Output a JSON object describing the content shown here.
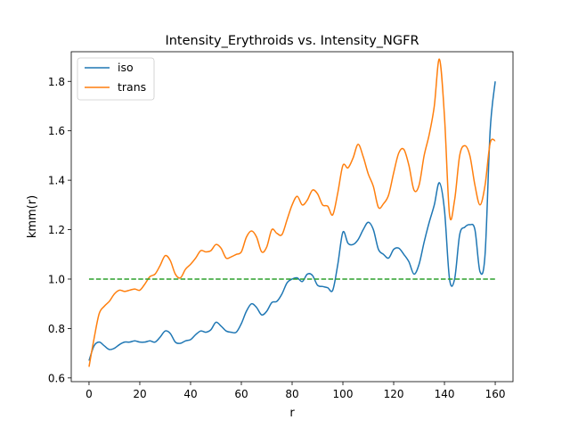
{
  "chart_data": {
    "type": "line",
    "title": "Intensity_Erythroids vs. Intensity_NGFR",
    "xlabel": "r",
    "ylabel": "kmm(r)",
    "xlim": [
      -7,
      167
    ],
    "ylim": [
      0.585,
      1.92
    ],
    "xticks": [
      0,
      20,
      40,
      60,
      80,
      100,
      120,
      140,
      160
    ],
    "yticks": [
      0.6,
      0.8,
      1.0,
      1.2,
      1.4,
      1.6,
      1.8
    ],
    "ytick_labels": [
      "0.6",
      "0.8",
      "1.0",
      "1.2",
      "1.4",
      "1.6",
      "1.8"
    ],
    "grid": false,
    "legend": {
      "placement": "top-left"
    },
    "x": [
      0,
      2,
      4,
      6,
      8,
      10,
      12,
      14,
      16,
      18,
      20,
      22,
      24,
      26,
      28,
      30,
      32,
      34,
      36,
      38,
      40,
      42,
      44,
      46,
      48,
      50,
      52,
      54,
      56,
      58,
      60,
      62,
      64,
      66,
      68,
      70,
      72,
      74,
      76,
      78,
      80,
      82,
      84,
      86,
      88,
      90,
      92,
      94,
      96,
      98,
      100,
      102,
      104,
      106,
      108,
      110,
      112,
      114,
      116,
      118,
      120,
      122,
      124,
      126,
      128,
      130,
      132,
      134,
      136,
      138,
      140,
      142,
      144,
      146,
      148,
      150,
      152,
      154,
      156,
      158,
      160
    ],
    "series": [
      {
        "name": "iso",
        "color": "#1f77b4",
        "values": [
          0.67,
          0.73,
          0.745,
          0.73,
          0.715,
          0.72,
          0.735,
          0.745,
          0.745,
          0.75,
          0.745,
          0.745,
          0.75,
          0.745,
          0.765,
          0.79,
          0.78,
          0.745,
          0.74,
          0.75,
          0.755,
          0.775,
          0.79,
          0.785,
          0.795,
          0.825,
          0.81,
          0.79,
          0.785,
          0.785,
          0.82,
          0.87,
          0.9,
          0.885,
          0.855,
          0.87,
          0.905,
          0.91,
          0.94,
          0.985,
          1.0,
          1.005,
          0.99,
          1.02,
          1.015,
          0.975,
          0.97,
          0.965,
          0.955,
          1.06,
          1.19,
          1.145,
          1.14,
          1.16,
          1.2,
          1.23,
          1.2,
          1.12,
          1.1,
          1.085,
          1.12,
          1.125,
          1.1,
          1.07,
          1.02,
          1.06,
          1.15,
          1.23,
          1.3,
          1.39,
          1.28,
          1.0,
          1.0,
          1.18,
          1.21,
          1.22,
          1.2,
          1.03,
          1.1,
          1.6,
          1.8
        ]
      },
      {
        "name": "trans",
        "color": "#ff7f0e",
        "values": [
          0.645,
          0.76,
          0.86,
          0.89,
          0.91,
          0.94,
          0.955,
          0.95,
          0.955,
          0.96,
          0.955,
          0.98,
          1.01,
          1.02,
          1.055,
          1.095,
          1.075,
          1.02,
          1.005,
          1.04,
          1.06,
          1.085,
          1.115,
          1.11,
          1.115,
          1.14,
          1.125,
          1.085,
          1.09,
          1.1,
          1.11,
          1.17,
          1.195,
          1.17,
          1.11,
          1.13,
          1.2,
          1.185,
          1.18,
          1.24,
          1.3,
          1.335,
          1.3,
          1.32,
          1.36,
          1.345,
          1.3,
          1.295,
          1.26,
          1.35,
          1.46,
          1.45,
          1.49,
          1.545,
          1.495,
          1.425,
          1.375,
          1.29,
          1.305,
          1.34,
          1.43,
          1.51,
          1.525,
          1.46,
          1.36,
          1.38,
          1.5,
          1.585,
          1.7,
          1.89,
          1.66,
          1.26,
          1.32,
          1.5,
          1.54,
          1.5,
          1.38,
          1.3,
          1.38,
          1.55,
          1.56
        ]
      },
      {
        "name": "",
        "color": "#2ca02c",
        "dashed": true,
        "values": [
          1.0,
          1.0,
          1.0,
          1.0,
          1.0,
          1.0,
          1.0,
          1.0,
          1.0,
          1.0,
          1.0,
          1.0,
          1.0,
          1.0,
          1.0,
          1.0,
          1.0,
          1.0,
          1.0,
          1.0,
          1.0,
          1.0,
          1.0,
          1.0,
          1.0,
          1.0,
          1.0,
          1.0,
          1.0,
          1.0,
          1.0,
          1.0,
          1.0,
          1.0,
          1.0,
          1.0,
          1.0,
          1.0,
          1.0,
          1.0,
          1.0,
          1.0,
          1.0,
          1.0,
          1.0,
          1.0,
          1.0,
          1.0,
          1.0,
          1.0,
          1.0,
          1.0,
          1.0,
          1.0,
          1.0,
          1.0,
          1.0,
          1.0,
          1.0,
          1.0,
          1.0,
          1.0,
          1.0,
          1.0,
          1.0,
          1.0,
          1.0,
          1.0,
          1.0,
          1.0,
          1.0,
          1.0,
          1.0,
          1.0,
          1.0,
          1.0,
          1.0,
          1.0,
          1.0,
          1.0,
          1.0
        ]
      }
    ]
  }
}
